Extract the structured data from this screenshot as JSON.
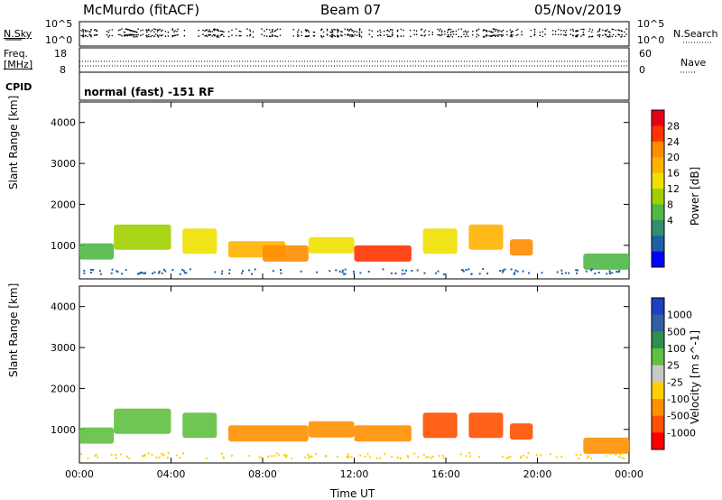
{
  "header": {
    "station": "McMurdo (fitACF)",
    "beam": "Beam 07",
    "date": "05/Nov/2019"
  },
  "noise_panel": {
    "left_label": "N.Sky",
    "right_label": "N.Search",
    "left_ticks": [
      "10^5",
      "10^0"
    ],
    "right_ticks": [
      "10^5",
      "10^0"
    ]
  },
  "freq_panel": {
    "left_label_top": "Freq.",
    "left_label_bottom": "[MHz]",
    "right_label": "Nave",
    "left_ticks": [
      "18",
      "8"
    ],
    "right_ticks": [
      "60",
      "0"
    ]
  },
  "cpid_panel": {
    "label": "CPID",
    "text": "normal (fast) -151 RF"
  },
  "chart_data": [
    {
      "type": "heatmap",
      "title": "",
      "ylabel": "Slant Range [km]",
      "y_ticks": [
        "4000",
        "3000",
        "2000",
        "1000"
      ],
      "x_ticks": [
        "00:00",
        "04:00",
        "08:00",
        "12:00",
        "16:00",
        "20:00",
        "00:00"
      ],
      "xlabel": "Time UT",
      "ylim": [
        180,
        4500
      ],
      "xlim_hours": [
        0,
        24
      ],
      "colorbar": {
        "label": "Power [dB]",
        "tick_labels": [
          "28",
          "24",
          "20",
          "16",
          "12",
          "8",
          "4"
        ],
        "colors": [
          "#e6001a",
          "#ff3300",
          "#ff8c00",
          "#ffb300",
          "#f0e000",
          "#a0d000",
          "#50b848",
          "#2f8f6f",
          "#1f5fa8",
          "#0000ff"
        ]
      },
      "echo_bands": [
        {
          "t_start": 0.0,
          "t_end": 1.5,
          "range": 850,
          "value": "8"
        },
        {
          "t_start": 1.5,
          "t_end": 4.0,
          "range": 1200,
          "value": "12"
        },
        {
          "t_start": 4.5,
          "t_end": 6.0,
          "range": 1100,
          "value": "16"
        },
        {
          "t_start": 6.5,
          "t_end": 9.0,
          "range": 900,
          "value": "20"
        },
        {
          "t_start": 8.0,
          "t_end": 10.0,
          "range": 800,
          "value": "24"
        },
        {
          "t_start": 10.0,
          "t_end": 12.0,
          "range": 1000,
          "value": "16"
        },
        {
          "t_start": 12.0,
          "t_end": 14.5,
          "range": 800,
          "value": "28"
        },
        {
          "t_start": 15.0,
          "t_end": 16.5,
          "range": 1100,
          "value": "16"
        },
        {
          "t_start": 17.0,
          "t_end": 18.5,
          "range": 1200,
          "value": "20"
        },
        {
          "t_start": 18.8,
          "t_end": 19.8,
          "range": 950,
          "value": "24"
        },
        {
          "t_start": 22.0,
          "t_end": 24.0,
          "range": 600,
          "value": "8"
        }
      ]
    },
    {
      "type": "heatmap",
      "title": "",
      "ylabel": "Slant Range [km]",
      "y_ticks": [
        "4000",
        "3000",
        "2000",
        "1000"
      ],
      "x_ticks": [
        "00:00",
        "04:00",
        "08:00",
        "12:00",
        "16:00",
        "20:00",
        "00:00"
      ],
      "xlabel": "Time UT",
      "ylim": [
        180,
        4500
      ],
      "xlim_hours": [
        0,
        24
      ],
      "colorbar": {
        "label": "Velocity [m s^-1]",
        "tick_labels": [
          "1000",
          "500",
          "100",
          "25",
          "-25",
          "-100",
          "-500",
          "-1000"
        ],
        "colors": [
          "#2040c0",
          "#3060a0",
          "#2f8f4f",
          "#60c040",
          "#c8c8c8",
          "#ffd000",
          "#ff9000",
          "#ff5000",
          "#ff0000"
        ]
      },
      "echo_bands": [
        {
          "t_start": 0.0,
          "t_end": 1.5,
          "range": 850,
          "value": "100"
        },
        {
          "t_start": 1.5,
          "t_end": 4.0,
          "range": 1200,
          "value": "100"
        },
        {
          "t_start": 4.5,
          "t_end": 6.0,
          "range": 1100,
          "value": "100"
        },
        {
          "t_start": 6.5,
          "t_end": 10.0,
          "range": 900,
          "value": "-100"
        },
        {
          "t_start": 10.0,
          "t_end": 12.0,
          "range": 1000,
          "value": "-100"
        },
        {
          "t_start": 12.0,
          "t_end": 14.5,
          "range": 900,
          "value": "-100"
        },
        {
          "t_start": 15.0,
          "t_end": 16.5,
          "range": 1100,
          "value": "-500"
        },
        {
          "t_start": 17.0,
          "t_end": 18.5,
          "range": 1100,
          "value": "-500"
        },
        {
          "t_start": 18.8,
          "t_end": 19.8,
          "range": 950,
          "value": "-500"
        },
        {
          "t_start": 22.0,
          "t_end": 24.0,
          "range": 600,
          "value": "-100"
        }
      ]
    }
  ]
}
